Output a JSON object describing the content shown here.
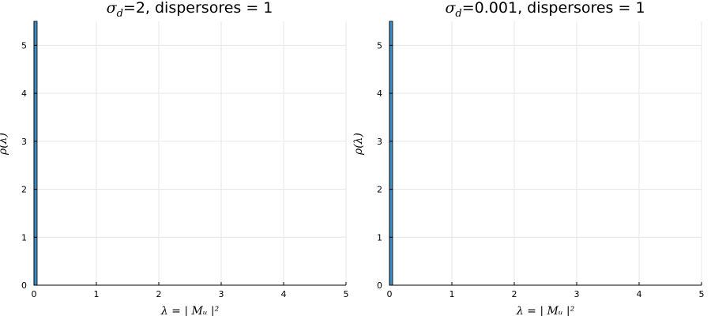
{
  "bar_color": "#3a8fc8",
  "bar_edge_color": "#1f1f1f",
  "chart_data": [
    {
      "type": "bar",
      "title": {
        "symbol": "σ",
        "subscript": "d",
        "text": "=2, dispersores = 1"
      },
      "xlabel": "λ = | Mᵤ |²",
      "ylabel": "ρ(λ)",
      "xlim": [
        0,
        5
      ],
      "ylim": [
        0,
        5.5
      ],
      "xticks": [
        0,
        1,
        2,
        3,
        4,
        5
      ],
      "yticks": [
        0,
        1,
        2,
        3,
        4,
        5
      ],
      "grid": true,
      "bins": [
        {
          "x0": 0.0,
          "x1": 0.05,
          "value": 5.5
        }
      ]
    },
    {
      "type": "bar",
      "title": {
        "symbol": "σ",
        "subscript": "d",
        "text": "=0.001, dispersores = 1"
      },
      "xlabel": "λ = | Mᵤ |²",
      "ylabel": "ρ(λ)",
      "xlim": [
        0,
        5
      ],
      "ylim": [
        0,
        5.5
      ],
      "xticks": [
        0,
        1,
        2,
        3,
        4,
        5
      ],
      "yticks": [
        0,
        1,
        2,
        3,
        4,
        5
      ],
      "grid": true,
      "bins": [
        {
          "x0": 0.0,
          "x1": 0.05,
          "value": 5.5
        }
      ]
    }
  ]
}
